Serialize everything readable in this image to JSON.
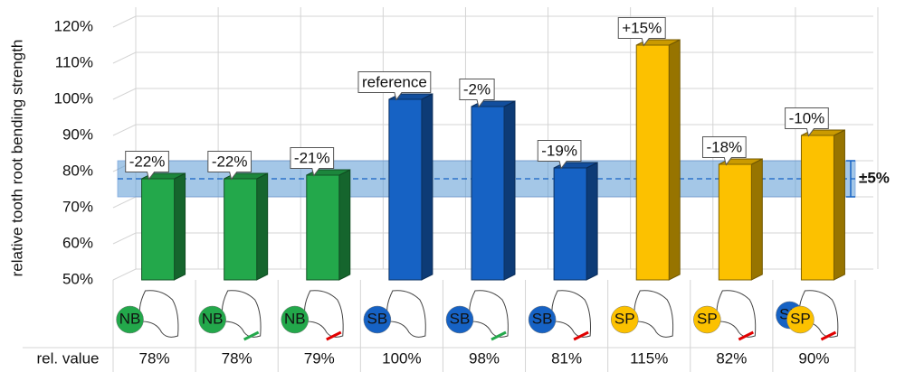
{
  "chart_data": {
    "type": "bar3d",
    "y_label": "relative tooth root bending strength",
    "values": [
      78,
      78,
      79,
      100,
      98,
      81,
      115,
      82,
      90
    ],
    "colors": [
      "#23a84b",
      "#23a84b",
      "#23a84b",
      "#1662c4",
      "#1662c4",
      "#1662c4",
      "#fcc100",
      "#fcc100",
      "#fcc100"
    ],
    "annotations": [
      "-22%",
      "-22%",
      "-21%",
      "reference",
      "-2%",
      "-19%",
      "+15%",
      "-18%",
      "-10%"
    ],
    "row_label": "rel. value",
    "value_labels": [
      "78%",
      "78%",
      "79%",
      "100%",
      "98%",
      "81%",
      "115%",
      "82%",
      "90%"
    ],
    "icon_labels": [
      [
        "NB"
      ],
      [
        "NB"
      ],
      [
        "NB"
      ],
      [
        "SB"
      ],
      [
        "SB"
      ],
      [
        "SB"
      ],
      [
        "SP"
      ],
      [
        "SP"
      ],
      [
        "SB",
        "SP"
      ]
    ],
    "icon_colors": {
      "NB": "#23a84b",
      "SB": "#1662c4",
      "SP": "#fcc100"
    },
    "edge_colors": [
      null,
      "#23a84b",
      "#e00000",
      null,
      "#23a84b",
      "#e00000",
      null,
      "#e00000",
      "#e00000"
    ],
    "band": {
      "center": 78,
      "range": [
        73,
        83
      ],
      "label": "±5%",
      "color": "#5b9bd5"
    },
    "ylim": [
      50,
      120
    ],
    "yticks": [
      {
        "value": 50,
        "label": "50%"
      },
      {
        "value": 60,
        "label": "60%"
      },
      {
        "value": 70,
        "label": "70%"
      },
      {
        "value": 80,
        "label": "80%"
      },
      {
        "value": 90,
        "label": "90%"
      },
      {
        "value": 100,
        "label": "100%"
      },
      {
        "value": 110,
        "label": "110%"
      },
      {
        "value": 120,
        "label": "120%"
      }
    ],
    "grid": true
  }
}
